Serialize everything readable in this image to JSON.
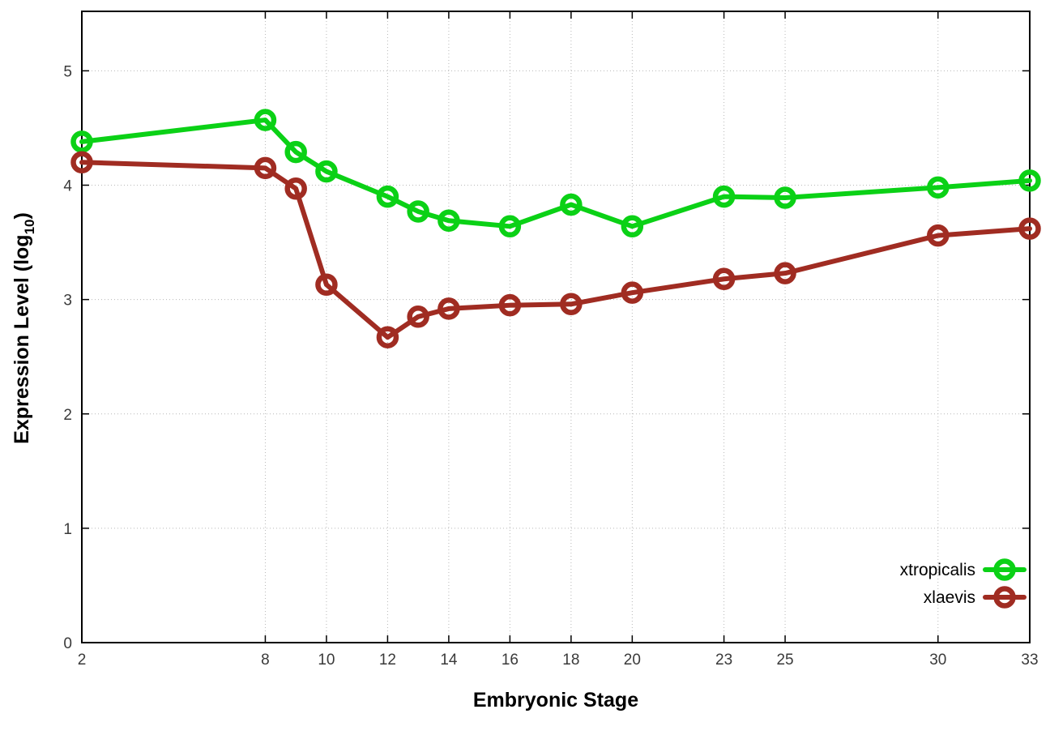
{
  "chart_data": {
    "type": "line",
    "title": "",
    "xlabel": "Embryonic Stage",
    "ylabel": "Expression Level (log10)",
    "ylabel_prefix": "Expression Level (log",
    "ylabel_sub": "10",
    "ylabel_suffix": ")",
    "xlim": [
      2,
      33
    ],
    "ylim": [
      0,
      5.52
    ],
    "x_ticks": [
      2,
      8,
      10,
      12,
      14,
      16,
      18,
      20,
      23,
      25,
      30,
      33
    ],
    "y_ticks": [
      0,
      1,
      2,
      3,
      4,
      5
    ],
    "grid": true,
    "grid_style": "dotted",
    "legend_position": "inside-bottom-right",
    "x": [
      2,
      8,
      9,
      10,
      12,
      13,
      14,
      16,
      18,
      20,
      23,
      25,
      30,
      33
    ],
    "series": [
      {
        "name": "xtropicalis",
        "color": "#0bd116",
        "marker": "open-circle",
        "values": [
          4.38,
          4.57,
          4.29,
          4.12,
          3.9,
          3.77,
          3.69,
          3.64,
          3.83,
          3.64,
          3.9,
          3.89,
          3.98,
          4.04
        ]
      },
      {
        "name": "xlaevis",
        "color": "#a02c22",
        "marker": "open-circle",
        "values": [
          4.2,
          4.15,
          3.97,
          3.13,
          2.67,
          2.85,
          2.92,
          2.95,
          2.96,
          3.06,
          3.18,
          3.23,
          3.56,
          3.62
        ]
      }
    ],
    "colors": {
      "border": "#000000",
      "grid": "#b8b8b8",
      "tick_text": "#3a3a3a",
      "background": "#ffffff"
    }
  }
}
